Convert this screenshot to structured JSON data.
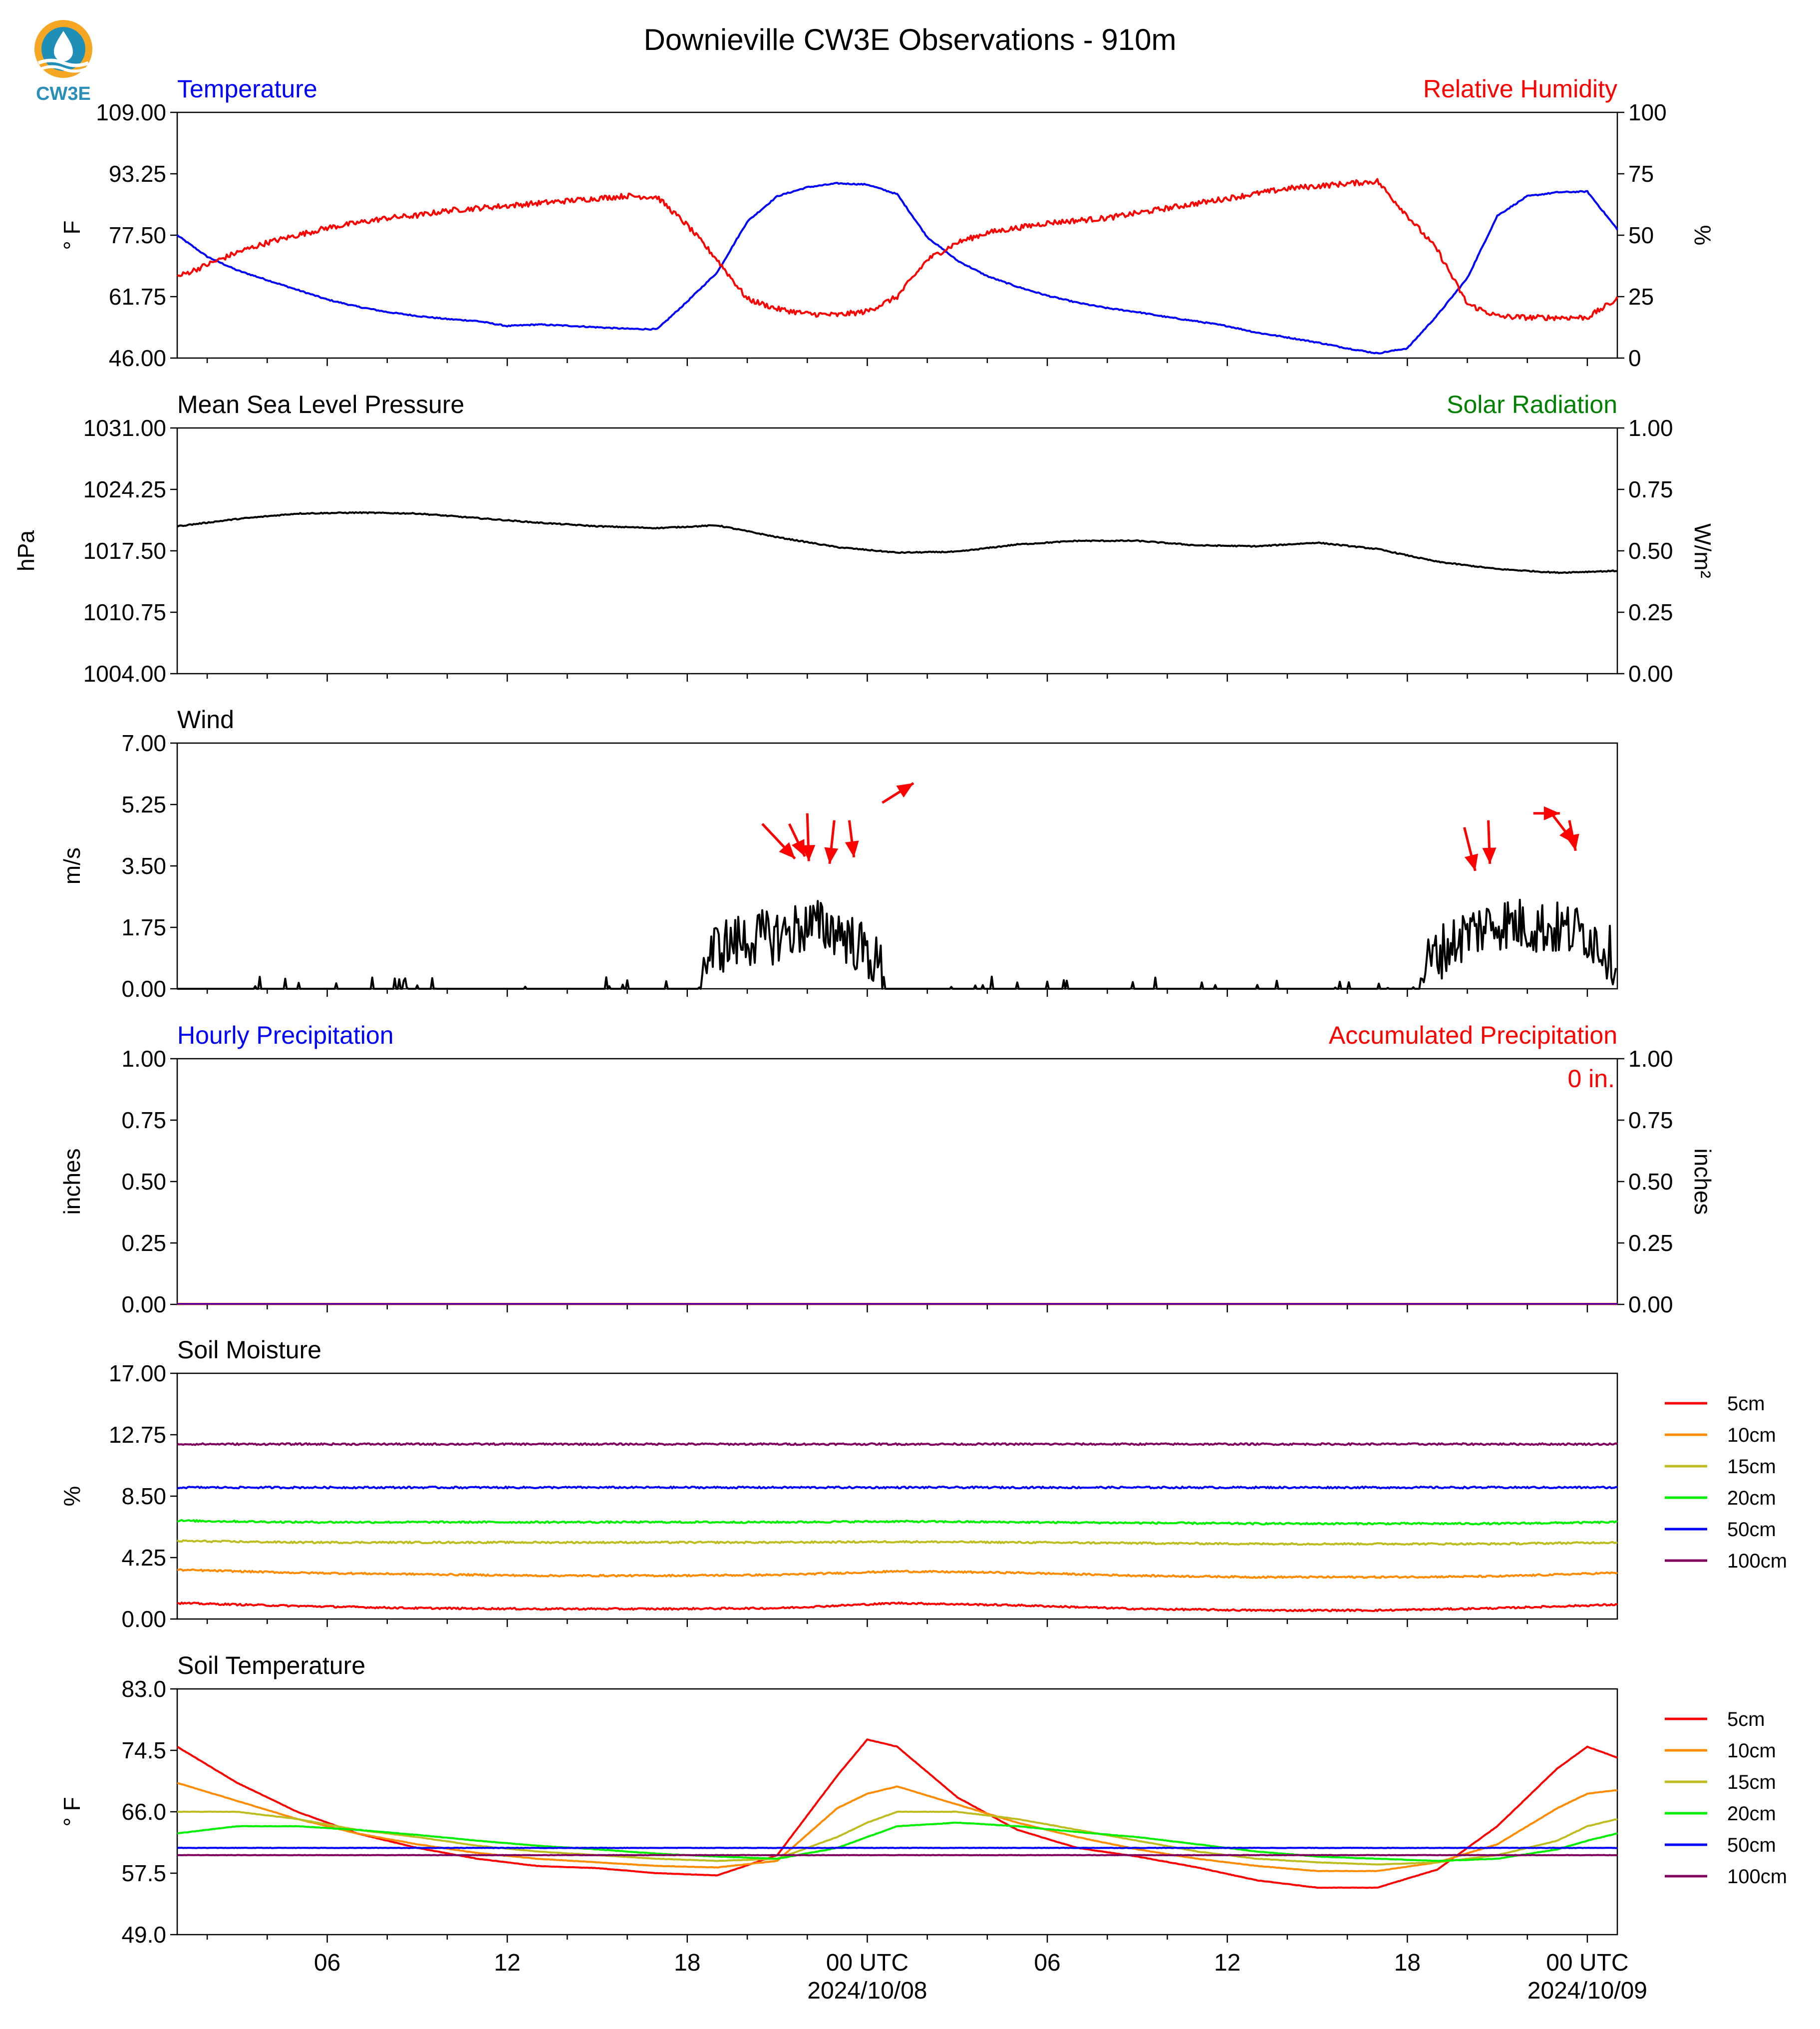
{
  "figure_title": "Downieville CW3E Observations - 910m",
  "logo_text": "CW3E",
  "colors": {
    "temperature": "#0000ff",
    "humidity": "#ff0000",
    "pressure": "#000000",
    "solar": "#008000",
    "wind": "#000000",
    "wind_arrows": "#ff0000",
    "hourly_precip": "#0000ff",
    "accum_precip": "#ff0000",
    "depth_colors": [
      "#ff0000",
      "#ff8c00",
      "#bdbd22",
      "#00ee00",
      "#0000ff",
      "#800060"
    ]
  },
  "x_axis": {
    "range_hours": [
      -23,
      25
    ],
    "ticks_hours": [
      -18,
      -12,
      -6,
      0,
      6,
      12,
      18,
      24
    ],
    "tick_labels": [
      "06",
      "12",
      "18",
      "00 UTC",
      "06",
      "12",
      "18",
      "00 UTC"
    ],
    "date_labels": [
      "2024/10/08",
      "2024/10/09"
    ]
  },
  "chart_data": [
    {
      "type": "line",
      "title_left": "Temperature",
      "title_right": "Relative Humidity",
      "ylabel_left": "° F",
      "ylabel_right": "%",
      "ylim_left": [
        46.0,
        109.0
      ],
      "ylim_right": [
        0,
        100
      ],
      "yticks_left": [
        "46.00",
        "61.75",
        "77.50",
        "93.25",
        "109.00"
      ],
      "yticks_right": [
        "0",
        "25",
        "50",
        "75",
        "100"
      ],
      "x_hours": [
        -23,
        -22,
        -21,
        -20,
        -19,
        -18,
        -17,
        -16,
        -15,
        -14,
        -13,
        -12,
        -11,
        -10,
        -9,
        -8,
        -7,
        -6,
        -5,
        -4,
        -3,
        -2,
        -1,
        0,
        1,
        2,
        3,
        4,
        5,
        6,
        7,
        8,
        9,
        10,
        11,
        12,
        13,
        14,
        15,
        16,
        17,
        18,
        19,
        20,
        21,
        22,
        23,
        24,
        25
      ],
      "series": [
        {
          "name": "Temperature",
          "axis": "left",
          "values": [
            77.5,
            72,
            68.5,
            66,
            63.5,
            61,
            59.2,
            57.8,
            56.8,
            56,
            55.5,
            54.2,
            54.6,
            54.3,
            53.9,
            53.5,
            53.4,
            60.5,
            68,
            81,
            87.5,
            89.8,
            90.8,
            90.5,
            88,
            77,
            71,
            67,
            64.3,
            62,
            60.2,
            58.8,
            57.8,
            56.5,
            55.4,
            54.2,
            52.5,
            51.3,
            50,
            48.5,
            47.2,
            48.5,
            57,
            66.5,
            82.5,
            87.5,
            88.5,
            88.7,
            79
          ]
        },
        {
          "name": "Relative Humidity",
          "axis": "right",
          "values": [
            33,
            38,
            43,
            47,
            50,
            53,
            55,
            57,
            58,
            60,
            61,
            62,
            63,
            64,
            65,
            66,
            65.5,
            54,
            40,
            24,
            20,
            18,
            17.5,
            19,
            25,
            40,
            47,
            51,
            53,
            55,
            56,
            57,
            59,
            61,
            63,
            65,
            67,
            69,
            70,
            71,
            72,
            58,
            44,
            22,
            17,
            16.5,
            16.5,
            16.5,
            24
          ]
        }
      ]
    },
    {
      "type": "line",
      "title_left": "Mean Sea Level Pressure",
      "title_right": "Solar Radiation",
      "ylabel_left": "hPa",
      "ylabel_right": "W/m²",
      "ylim_left": [
        1004.0,
        1031.0
      ],
      "ylim_right": [
        0.0,
        1.0
      ],
      "yticks_left": [
        "1004.00",
        "1010.75",
        "1017.50",
        "1024.25",
        "1031.00"
      ],
      "yticks_right": [
        "0.00",
        "0.25",
        "0.50",
        "0.75",
        "1.00"
      ],
      "x_hours": [
        -23,
        -21,
        -19,
        -17,
        -15,
        -13,
        -11,
        -9,
        -7,
        -5,
        -3,
        -1,
        1,
        3,
        5,
        7,
        9,
        11,
        13,
        15,
        17,
        19,
        21,
        23,
        25
      ],
      "series": [
        {
          "name": "Mean Sea Level Pressure",
          "axis": "left",
          "values": [
            1020.2,
            1021.0,
            1021.6,
            1021.7,
            1021.6,
            1021.1,
            1020.6,
            1020.2,
            1020.0,
            1020.3,
            1019.0,
            1017.9,
            1017.3,
            1017.4,
            1018.2,
            1018.6,
            1018.6,
            1018.1,
            1018.0,
            1018.4,
            1017.7,
            1016.3,
            1015.5,
            1015.1,
            1015.3
          ]
        },
        {
          "name": "Solar Radiation",
          "axis": "right",
          "values": []
        }
      ]
    },
    {
      "type": "line",
      "title_left": "Wind",
      "ylabel_left": "m/s",
      "ylim_left": [
        0.0,
        7.0
      ],
      "yticks_left": [
        "0.00",
        "1.75",
        "3.50",
        "5.25",
        "7.00"
      ],
      "x_hours": [
        -23,
        -22,
        -21,
        -20,
        -19,
        -18,
        -17,
        -16,
        -15,
        -14,
        -13,
        -12,
        -11,
        -10,
        -9,
        -8,
        -7,
        -6,
        -5,
        -4,
        -3,
        -2,
        -1,
        0,
        1,
        2,
        3,
        4,
        5,
        6,
        7,
        8,
        9,
        10,
        11,
        12,
        13,
        14,
        15,
        16,
        17,
        18,
        19,
        20,
        21,
        22,
        23,
        24,
        25
      ],
      "series": [
        {
          "name": "Wind",
          "axis": "left",
          "values": [
            0.3,
            0.1,
            0.2,
            0,
            0,
            0,
            0.1,
            0,
            0.2,
            0.1,
            0.1,
            0.3,
            0.1,
            0,
            0.1,
            0.2,
            0,
            0.1,
            1.2,
            1.4,
            1.5,
            1.8,
            1.7,
            1.0,
            0.1,
            0,
            0,
            0,
            0.1,
            0,
            0,
            0.2,
            0.1,
            0.1,
            0,
            0.1,
            0.2,
            0,
            0.1,
            0.2,
            0.1,
            0.1,
            1.0,
            1.6,
            1.9,
            1.8,
            1.7,
            1.6,
            0.8
          ]
        }
      ],
      "wind_arrows": [
        {
          "x_hour": -3.5,
          "speed": 4.7,
          "dx": 2.1,
          "dy": -1.6
        },
        {
          "x_hour": -2.6,
          "speed": 4.7,
          "dx": 1.0,
          "dy": -1.5
        },
        {
          "x_hour": -2.0,
          "speed": 5.0,
          "dx": 0.1,
          "dy": -2.2
        },
        {
          "x_hour": -1.1,
          "speed": 4.8,
          "dx": -0.3,
          "dy": -2.0
        },
        {
          "x_hour": -0.6,
          "speed": 4.8,
          "dx": 0.3,
          "dy": -1.7
        },
        {
          "x_hour": 0.5,
          "speed": 5.3,
          "dx": 2.0,
          "dy": 0.9
        },
        {
          "x_hour": 19.9,
          "speed": 4.6,
          "dx": 0.7,
          "dy": -2.0
        },
        {
          "x_hour": 20.7,
          "speed": 4.8,
          "dx": 0.1,
          "dy": -2.0
        },
        {
          "x_hour": 22.2,
          "speed": 5.0,
          "dx": 1.7,
          "dy": 0.0
        },
        {
          "x_hour": 23.4,
          "speed": 4.8,
          "dx": 0.4,
          "dy": -1.4
        },
        {
          "x_hour": 22.8,
          "speed": 5.0,
          "dx": 1.5,
          "dy": -1.4
        }
      ]
    },
    {
      "type": "line",
      "title_left": "Hourly Precipitation",
      "title_right": "Accumulated Precipitation",
      "ylabel_left": "inches",
      "ylabel_right": "inches",
      "ylim_left": [
        0.0,
        1.0
      ],
      "ylim_right": [
        0.0,
        1.0
      ],
      "yticks_left": [
        "0.00",
        "0.25",
        "0.50",
        "0.75",
        "1.00"
      ],
      "yticks_right": [
        "0.00",
        "0.25",
        "0.50",
        "0.75",
        "1.00"
      ],
      "annotation": "0 in.",
      "x_hours": [
        -23,
        25
      ],
      "series": [
        {
          "name": "Hourly Precipitation",
          "axis": "left",
          "values": [
            0,
            0
          ]
        },
        {
          "name": "Accumulated Precipitation",
          "axis": "right",
          "values": [
            0,
            0
          ]
        }
      ]
    },
    {
      "type": "line",
      "title_left": "Soil Moisture",
      "ylabel_left": "%",
      "ylim_left": [
        0.0,
        17.0
      ],
      "yticks_left": [
        "0.00",
        "4.25",
        "8.50",
        "12.75",
        "17.00"
      ],
      "legend": "right",
      "x_hours": [
        -23,
        -19,
        -15,
        -11,
        -7,
        -3,
        1,
        5,
        9,
        13,
        17,
        21,
        25
      ],
      "series": [
        {
          "name": "5cm",
          "values": [
            1.1,
            0.9,
            0.75,
            0.7,
            0.7,
            0.75,
            1.1,
            0.95,
            0.7,
            0.6,
            0.6,
            0.75,
            1.0
          ]
        },
        {
          "name": "10cm",
          "values": [
            3.4,
            3.2,
            3.1,
            3.0,
            3.0,
            3.05,
            3.3,
            3.2,
            3.0,
            2.9,
            2.9,
            2.95,
            3.2
          ]
        },
        {
          "name": "15cm",
          "values": [
            5.4,
            5.3,
            5.3,
            5.3,
            5.3,
            5.3,
            5.35,
            5.3,
            5.25,
            5.2,
            5.2,
            5.2,
            5.3
          ]
        },
        {
          "name": "20cm",
          "values": [
            6.8,
            6.7,
            6.7,
            6.7,
            6.7,
            6.7,
            6.75,
            6.7,
            6.65,
            6.6,
            6.6,
            6.6,
            6.7
          ]
        },
        {
          "name": "50cm",
          "values": [
            9.1,
            9.1,
            9.1,
            9.1,
            9.1,
            9.1,
            9.1,
            9.1,
            9.1,
            9.1,
            9.1,
            9.1,
            9.1
          ]
        },
        {
          "name": "100cm",
          "values": [
            12.1,
            12.1,
            12.1,
            12.1,
            12.1,
            12.1,
            12.1,
            12.1,
            12.1,
            12.1,
            12.1,
            12.1,
            12.1
          ]
        }
      ]
    },
    {
      "type": "line",
      "title_left": "Soil Temperature",
      "ylabel_left": "° F",
      "ylim_left": [
        49.0,
        83.0
      ],
      "yticks_left": [
        "49.0",
        "57.5",
        "66.0",
        "74.5",
        "83.0"
      ],
      "legend": "right",
      "x_hours": [
        -23,
        -21,
        -19,
        -17,
        -15,
        -13,
        -11,
        -9,
        -7,
        -5,
        -3,
        -1,
        0,
        1,
        3,
        5,
        7,
        9,
        11,
        13,
        15,
        17,
        19,
        21,
        23,
        24,
        25
      ],
      "series": [
        {
          "name": "5cm",
          "values": [
            75,
            70,
            66,
            63,
            61,
            59.5,
            58.5,
            58.2,
            57.5,
            57.2,
            60,
            71,
            76,
            75,
            68,
            63.5,
            61,
            59.8,
            58.3,
            56.5,
            55.5,
            55.5,
            58,
            64,
            72,
            75,
            73.5
          ]
        },
        {
          "name": "10cm",
          "values": [
            70,
            67.5,
            65,
            63,
            61.5,
            60.3,
            59.5,
            59,
            58.5,
            58.3,
            59.2,
            66.5,
            68.5,
            69.5,
            67,
            64.5,
            62.5,
            60.8,
            59.5,
            58.5,
            57.8,
            57.8,
            59,
            61.5,
            66.5,
            68.5,
            69
          ]
        },
        {
          "name": "15cm",
          "values": [
            66,
            66,
            65,
            63.5,
            62.5,
            61.3,
            60.5,
            60,
            59.5,
            59.2,
            59.5,
            62.5,
            64.5,
            66,
            66,
            65,
            63.5,
            62,
            60.5,
            59.5,
            59,
            58.7,
            59,
            60,
            62,
            64,
            65
          ]
        },
        {
          "name": "20cm",
          "values": [
            63,
            64,
            64,
            63.5,
            62.8,
            62,
            61.3,
            60.8,
            60.2,
            59.8,
            59.5,
            61,
            62.5,
            64,
            64.5,
            64,
            63.2,
            62.5,
            61.5,
            60.5,
            59.8,
            59.5,
            59.2,
            59.5,
            60.8,
            62,
            63
          ]
        },
        {
          "name": "50cm",
          "values": [
            61,
            61,
            61,
            61,
            61,
            61,
            61,
            61,
            61,
            61,
            61,
            61,
            61,
            61,
            61,
            61,
            61,
            61,
            61,
            61,
            61,
            61,
            61,
            61,
            61,
            61,
            61
          ]
        },
        {
          "name": "100cm",
          "values": [
            60,
            60,
            60,
            60,
            60,
            60,
            60,
            60,
            60,
            60,
            60,
            60,
            60,
            60,
            60,
            60,
            60,
            60,
            60,
            60,
            60,
            60,
            60,
            60,
            60,
            60,
            60
          ]
        }
      ]
    }
  ]
}
